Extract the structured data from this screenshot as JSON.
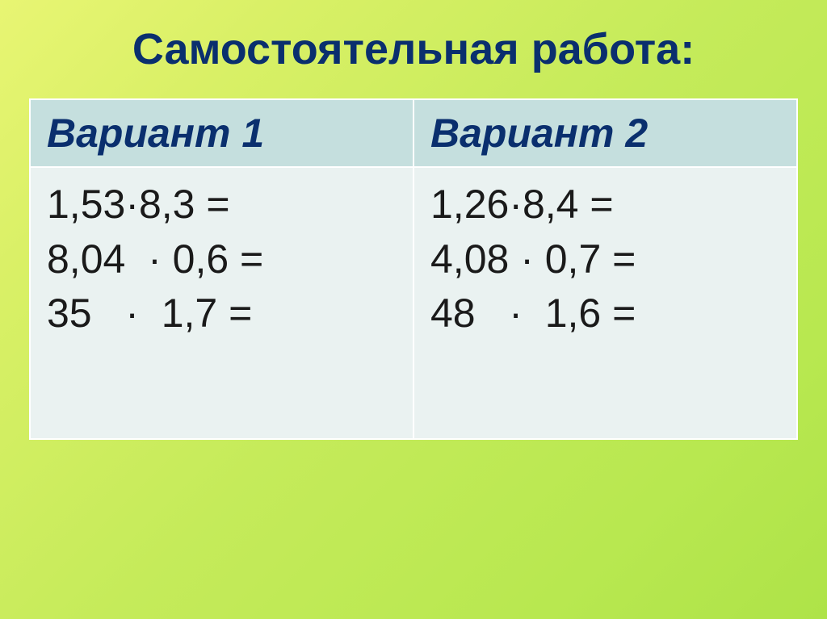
{
  "title": "Самостоятельная  работа:",
  "table": {
    "columns": [
      "Вариант  1",
      "Вариант 2"
    ],
    "rows": [
      {
        "variant1": [
          "1,53·8,3 =",
          "8,04  · 0,6 =",
          "35   ·  1,7 ="
        ],
        "variant2": [
          "1,26·8,4 =",
          "4,08 · 0,7 =",
          "48   ·  1,6 ="
        ]
      }
    ],
    "header_bg_color": "#c5dfde",
    "cell_bg_color": "#eaf2f1",
    "border_color": "#ffffff",
    "header_text_color": "#0a2f6e",
    "cell_text_color": "#1a1a1a",
    "title_color": "#0a2f6e",
    "font_size_title": 54,
    "font_size_header": 50,
    "font_size_cell": 50
  },
  "background_gradient": [
    "#e8f573",
    "#d9f066",
    "#c5eb5a",
    "#b8e850",
    "#aee348"
  ]
}
